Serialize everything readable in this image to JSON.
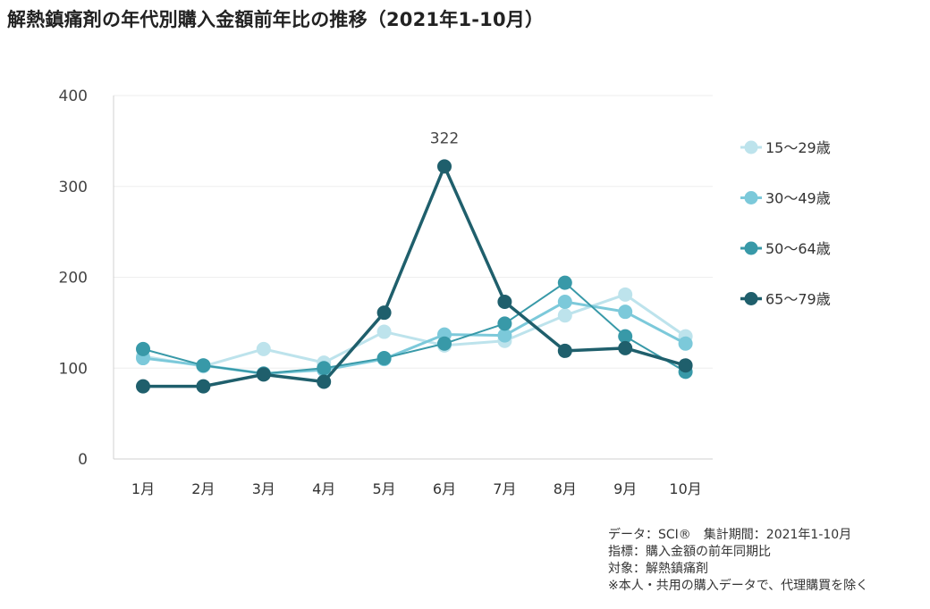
{
  "title": "解熱鎮痛剤の年代別購入金額前年比の推移（2021年1-10月）",
  "notes": [
    "データ：SCI®　集計期間：2021年1-10月",
    "指標：購入金額の前年同期比",
    "対象：解熱鎮痛剤",
    "※本人・共用の購入データで、代理購買を除く"
  ],
  "chart_data": {
    "type": "line",
    "title": "解熱鎮痛剤の年代別購入金額前年比の推移（2021年1-10月）",
    "categories": [
      "1月",
      "2月",
      "3月",
      "4月",
      "5月",
      "6月",
      "7月",
      "8月",
      "9月",
      "10月"
    ],
    "ylim": [
      0,
      400
    ],
    "yticks": [
      "0",
      "100",
      "200",
      "300",
      "400"
    ],
    "grid": true,
    "legend_position": "right",
    "series": [
      {
        "name": "15～29歳",
        "color": "#bde3ec",
        "values": [
          113,
          102,
          121,
          106,
          140,
          125,
          130,
          158,
          181,
          135
        ]
      },
      {
        "name": "30～49歳",
        "color": "#7cc9da",
        "values": [
          111,
          103,
          94,
          98,
          110,
          137,
          136,
          173,
          162,
          127
        ]
      },
      {
        "name": "50～64歳",
        "color": "#3899a8",
        "values": [
          121,
          103,
          94,
          100,
          111,
          127,
          149,
          194,
          135,
          96
        ]
      },
      {
        "name": "65～79歳",
        "color": "#1f5f6c",
        "values": [
          80,
          80,
          93,
          85,
          161,
          322,
          173,
          119,
          122,
          103
        ]
      }
    ],
    "annotations": [
      {
        "series": "65～79歳",
        "category": "6月",
        "label": "322"
      }
    ]
  }
}
